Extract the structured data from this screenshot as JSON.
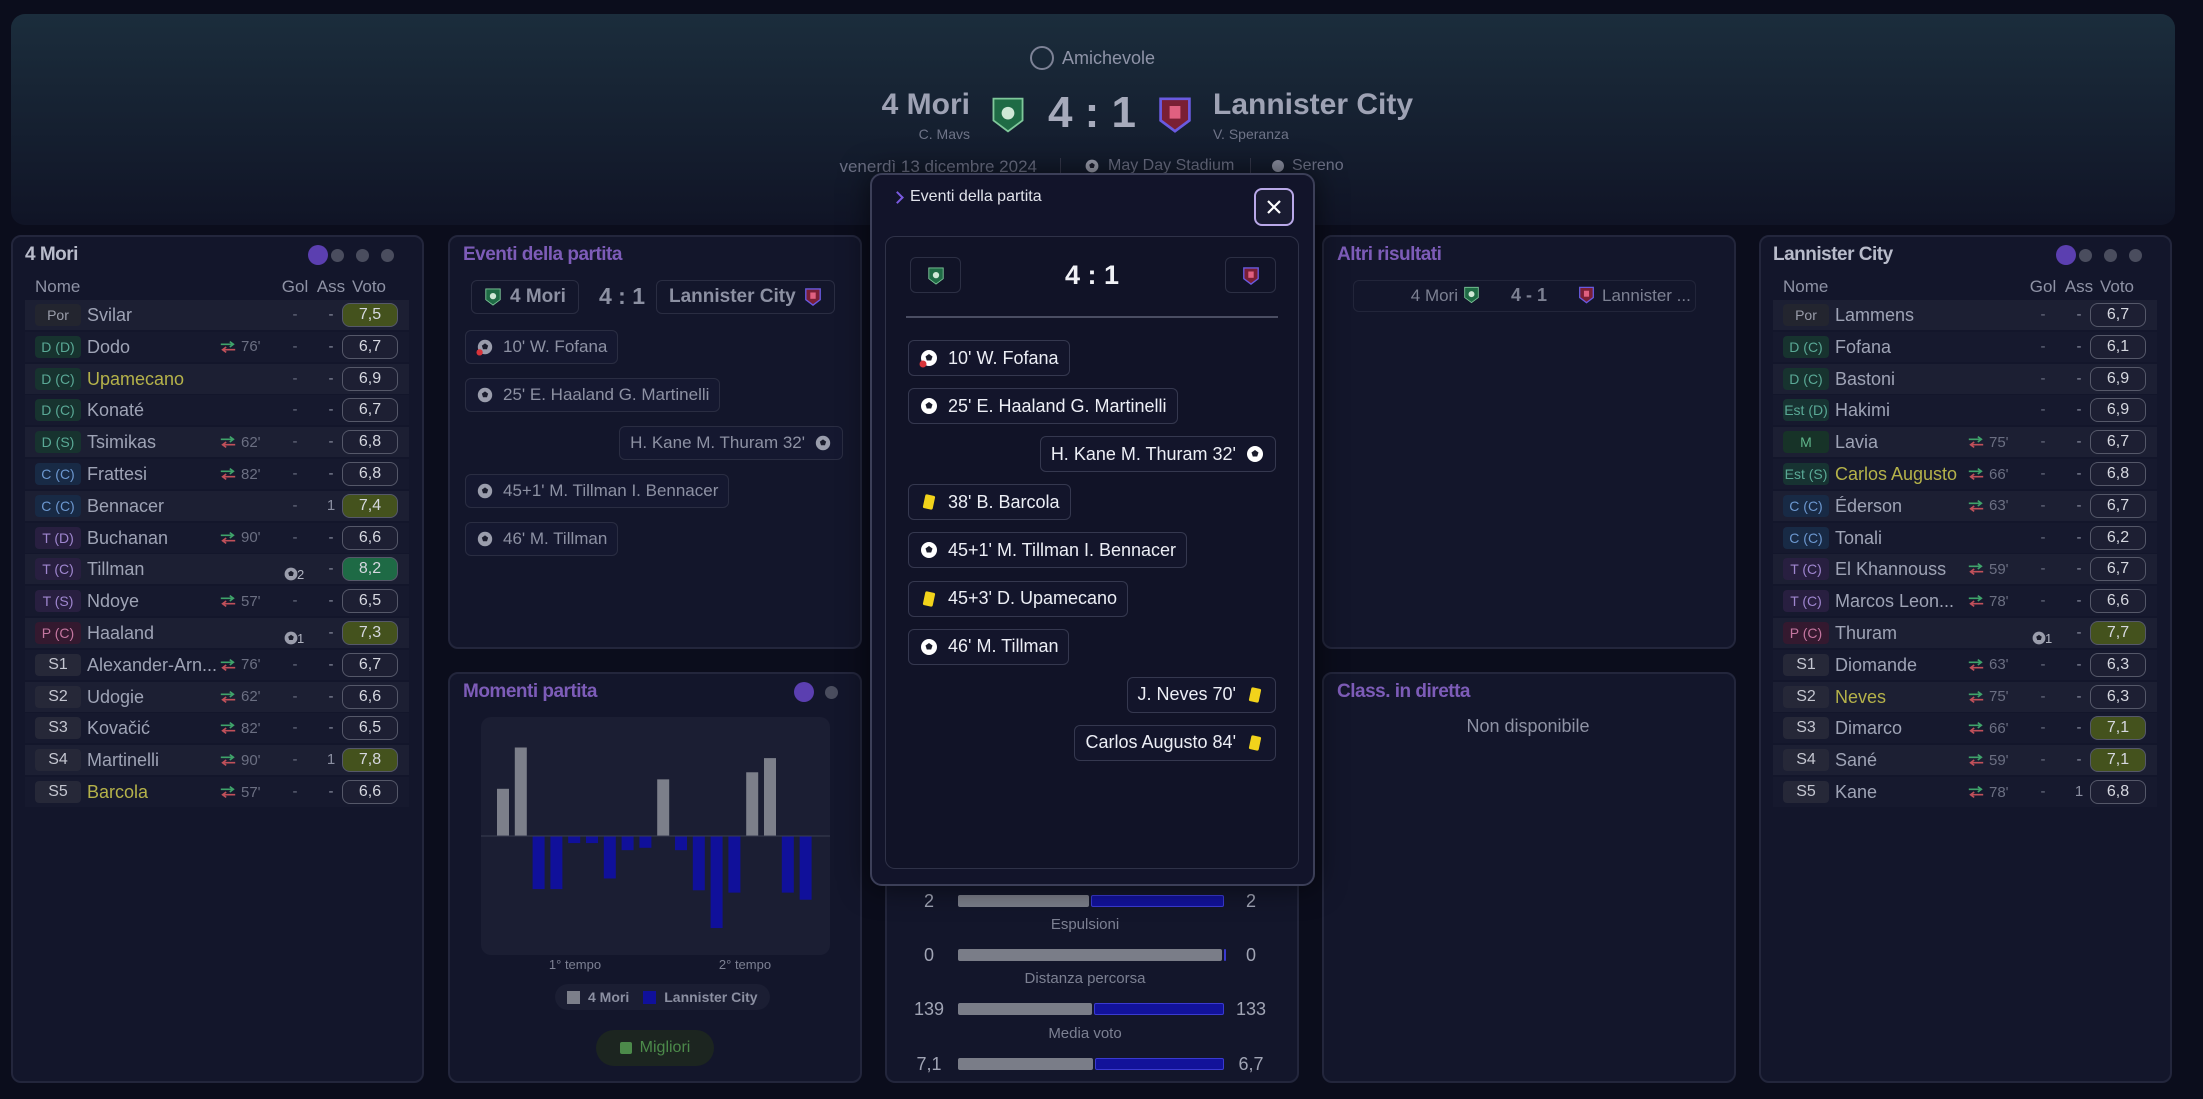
{
  "header": {
    "competition": "Amichevole",
    "home": {
      "name": "4 Mori",
      "coach": "C. Mavs"
    },
    "score": "4 : 1",
    "away": {
      "name": "Lannister City",
      "coach": "V. Speranza"
    },
    "date": "venerdì 13 dicembre 2024",
    "stadium": "May Day Stadium",
    "weather": "Sereno"
  },
  "lineups": [
    {
      "title": "4 Mori",
      "columns": [
        "Nome",
        "Gol",
        "Ass",
        "Voto"
      ],
      "rows": [
        {
          "pos": "Por",
          "name": "Svilar",
          "gol": "-",
          "ass": "-",
          "voto": "7,5"
        },
        {
          "pos": "D (D)",
          "name": "Dodo",
          "sub": "76'",
          "gol": "-",
          "ass": "-",
          "voto": "6,7"
        },
        {
          "pos": "D (C)",
          "name": "Upamecano",
          "highlight": true,
          "gol": "-",
          "ass": "-",
          "voto": "6,9"
        },
        {
          "pos": "D (C)",
          "name": "Konaté",
          "gol": "-",
          "ass": "-",
          "voto": "6,7"
        },
        {
          "pos": "D (S)",
          "name": "Tsimikas",
          "sub": "62'",
          "gol": "-",
          "ass": "-",
          "voto": "6,8"
        },
        {
          "pos": "C (C)",
          "name": "Frattesi",
          "sub": "82'",
          "gol": "-",
          "ass": "-",
          "voto": "6,8"
        },
        {
          "pos": "C (C)",
          "name": "Bennacer",
          "gol": "-",
          "ass": "1",
          "voto": "7,4"
        },
        {
          "pos": "T (D)",
          "name": "Buchanan",
          "sub": "90'",
          "gol": "-",
          "ass": "-",
          "voto": "6,6"
        },
        {
          "pos": "T (C)",
          "name": "Tillman",
          "gol": "2",
          "goal_icon": true,
          "ass": "-",
          "voto": "8,2"
        },
        {
          "pos": "T (S)",
          "name": "Ndoye",
          "sub": "57'",
          "gol": "-",
          "ass": "-",
          "voto": "6,5"
        },
        {
          "pos": "P (C)",
          "name": "Haaland",
          "gol": "1",
          "goal_icon": true,
          "ass": "-",
          "voto": "7,3"
        },
        {
          "pos": "S1",
          "name": "Alexander-Arn...",
          "sub": "76'",
          "gol": "-",
          "ass": "-",
          "voto": "6,7"
        },
        {
          "pos": "S2",
          "name": "Udogie",
          "sub": "62'",
          "gol": "-",
          "ass": "-",
          "voto": "6,6"
        },
        {
          "pos": "S3",
          "name": "Kovačić",
          "sub": "82'",
          "gol": "-",
          "ass": "-",
          "voto": "6,5"
        },
        {
          "pos": "S4",
          "name": "Martinelli",
          "sub": "90'",
          "gol": "-",
          "ass": "1",
          "voto": "7,8"
        },
        {
          "pos": "S5",
          "name": "Barcola",
          "highlight": true,
          "sub": "57'",
          "gol": "-",
          "ass": "-",
          "voto": "6,6"
        }
      ]
    },
    {
      "title": "Lannister City",
      "columns": [
        "Nome",
        "Gol",
        "Ass",
        "Voto"
      ],
      "rows": [
        {
          "pos": "Por",
          "name": "Lammens",
          "gol": "-",
          "ass": "-",
          "voto": "6,7"
        },
        {
          "pos": "D (C)",
          "name": "Fofana",
          "gol": "-",
          "ass": "-",
          "voto": "6,1"
        },
        {
          "pos": "D (C)",
          "name": "Bastoni",
          "gol": "-",
          "ass": "-",
          "voto": "6,9"
        },
        {
          "pos": "Est (D)",
          "name": "Hakimi",
          "gol": "-",
          "ass": "-",
          "voto": "6,9"
        },
        {
          "pos": "M",
          "name": "Lavia",
          "sub": "75'",
          "gol": "-",
          "ass": "-",
          "voto": "6,7"
        },
        {
          "pos": "Est (S)",
          "name": "Carlos Augusto",
          "highlight": true,
          "sub": "66'",
          "gol": "-",
          "ass": "-",
          "voto": "6,8"
        },
        {
          "pos": "C (C)",
          "name": "Éderson",
          "sub": "63'",
          "gol": "-",
          "ass": "-",
          "voto": "6,7"
        },
        {
          "pos": "C (C)",
          "name": "Tonali",
          "gol": "-",
          "ass": "-",
          "voto": "6,2"
        },
        {
          "pos": "T (C)",
          "name": "El Khannouss",
          "sub": "59'",
          "gol": "-",
          "ass": "-",
          "voto": "6,7"
        },
        {
          "pos": "T (C)",
          "name": "Marcos Leon...",
          "sub": "78'",
          "gol": "-",
          "ass": "-",
          "voto": "6,6"
        },
        {
          "pos": "P (C)",
          "name": "Thuram",
          "gol": "1",
          "goal_icon": true,
          "ass": "-",
          "voto": "7,7"
        },
        {
          "pos": "S1",
          "name": "Diomande",
          "sub": "63'",
          "gol": "-",
          "ass": "-",
          "voto": "6,3"
        },
        {
          "pos": "S2",
          "name": "Neves",
          "highlight": true,
          "sub": "75'",
          "gol": "-",
          "ass": "-",
          "voto": "6,3"
        },
        {
          "pos": "S3",
          "name": "Dimarco",
          "sub": "66'",
          "gol": "-",
          "ass": "-",
          "voto": "7,1"
        },
        {
          "pos": "S4",
          "name": "Sané",
          "sub": "59'",
          "gol": "-",
          "ass": "-",
          "voto": "7,1"
        },
        {
          "pos": "S5",
          "name": "Kane",
          "sub": "78'",
          "gol": "-",
          "ass": "1",
          "voto": "6,8"
        }
      ]
    }
  ],
  "events_panel": {
    "title": "Eventi della partita",
    "home": "4 Mori",
    "score": "4 : 1",
    "away": "Lannister City",
    "events": [
      {
        "side": "home",
        "type": "own",
        "text": "10' W. Fofana"
      },
      {
        "side": "home",
        "type": "goal",
        "text": "25' E. Haaland G. Martinelli"
      },
      {
        "side": "away",
        "type": "goal",
        "text": "H. Kane M. Thuram 32'"
      },
      {
        "side": "home",
        "type": "goal",
        "text": "45+1' M. Tillman I. Bennacer"
      },
      {
        "side": "home",
        "type": "goal",
        "text": "46' M. Tillman"
      }
    ]
  },
  "momentum": {
    "title": "Momenti partita",
    "ylim": [
      -100,
      100
    ],
    "values": [
      40,
      75,
      -45,
      -45,
      -6,
      -6,
      -36,
      -12,
      -10,
      48,
      -12,
      -46,
      -78,
      -48,
      54,
      66,
      -48,
      -54
    ],
    "halves": [
      "1° tempo",
      "2° tempo"
    ],
    "legend": [
      "4 Mori",
      "Lannister City"
    ],
    "home_color": "#7c7f8a",
    "away_color": "#10109a",
    "button": "Migliori"
  },
  "stats": [
    {
      "home": 2,
      "away": 2
    },
    {
      "label": "Espulsioni",
      "home": 0,
      "away": 0
    },
    {
      "label": "Distanza percorsa",
      "home": 139,
      "away": 133
    },
    {
      "label": "Media voto",
      "home": 7.1,
      "away": 6.7,
      "home_label": "7,1",
      "away_label": "6,7"
    }
  ],
  "other_results": {
    "title": "Altri risultati",
    "home": "4 Mori",
    "score": "4 - 1",
    "away": "Lannister ..."
  },
  "live_table": {
    "title": "Class. in diretta",
    "text": "Non disponibile"
  },
  "modal": {
    "title": "Eventi della partita",
    "score": "4 : 1",
    "events": [
      {
        "side": "home",
        "type": "own",
        "text": "10' W. Fofana"
      },
      {
        "side": "home",
        "type": "goal",
        "text": "25' E. Haaland G. Martinelli"
      },
      {
        "side": "away",
        "type": "goal",
        "text": "H. Kane M. Thuram 32'"
      },
      {
        "side": "home",
        "type": "yellow",
        "text": "38' B. Barcola"
      },
      {
        "side": "home",
        "type": "goal",
        "text": "45+1' M. Tillman I. Bennacer"
      },
      {
        "side": "home",
        "type": "yellow",
        "text": "45+3' D. Upamecano"
      },
      {
        "side": "home",
        "type": "goal",
        "text": "46' M. Tillman"
      },
      {
        "side": "away",
        "type": "yellow",
        "text": "J. Neves 70'"
      },
      {
        "side": "away",
        "type": "yellow",
        "text": "Carlos Augusto 84'"
      }
    ]
  }
}
